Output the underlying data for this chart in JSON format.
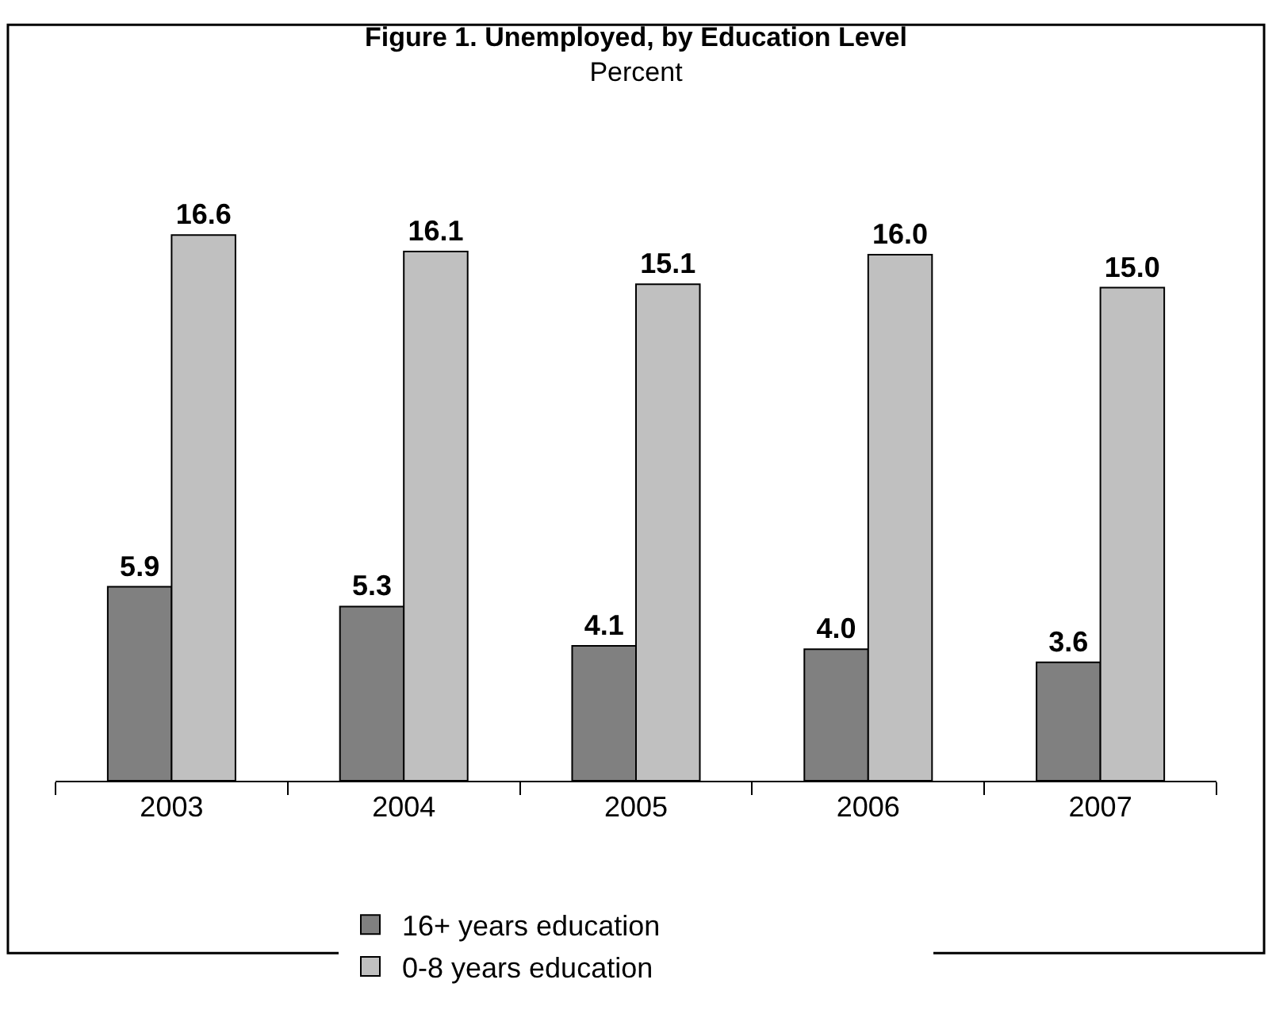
{
  "chart_data": {
    "type": "bar",
    "title": "Figure 1. Unemployed, by Education Level",
    "subtitle": "Percent",
    "categories": [
      "2003",
      "2004",
      "2005",
      "2006",
      "2007"
    ],
    "series": [
      {
        "name": "16+ years education",
        "color": "#808080",
        "values": [
          5.9,
          5.3,
          4.1,
          4.0,
          3.6
        ],
        "value_labels": [
          "5.9",
          "5.3",
          "4.1",
          "4.0",
          "3.6"
        ]
      },
      {
        "name": "0-8 years education",
        "color": "#c0c0c0",
        "values": [
          16.6,
          16.1,
          15.1,
          16.0,
          15.0
        ],
        "value_labels": [
          "16.6",
          "16.1",
          "15.1",
          "16.0",
          "15.0"
        ]
      }
    ],
    "legend": "bottom"
  }
}
